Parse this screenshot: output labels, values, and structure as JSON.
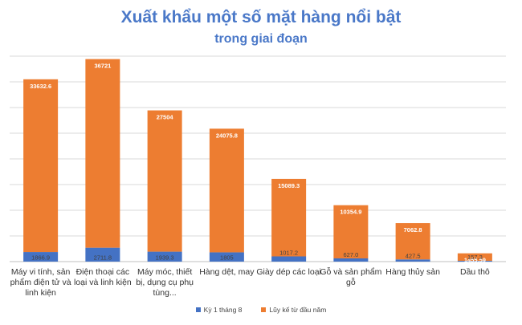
{
  "title": "Xuất khẩu một số mặt hàng nổi bật",
  "subtitle": "trong giai đoạn",
  "colors": {
    "series1": "#4472c4",
    "series2": "#ed7d31",
    "grid": "#d9d9d9"
  },
  "chart_data": {
    "type": "bar",
    "stacked": true,
    "title": "Xuất khẩu một số mặt hàng nổi bật trong giai đoạn",
    "categories": [
      [
        "Máy vi tính, sản",
        "phẩm điện tử và",
        "linh kiện"
      ],
      [
        "Điện thoại các",
        "loại và linh kiện"
      ],
      [
        "Máy móc, thiết",
        "bị, dụng cụ phụ",
        "tùng..."
      ],
      [
        "Hàng dệt, may"
      ],
      [
        "Giày dép các loại"
      ],
      [
        "Gỗ và sản phẩm",
        "gỗ"
      ],
      [
        "Hàng thủy sản"
      ],
      [
        "Dầu thô"
      ]
    ],
    "series": [
      {
        "name": "Kỳ 1 tháng 8",
        "values": [
          1866.9,
          2711.8,
          1939.3,
          1805,
          1017.2,
          627.0,
          427.5,
          157.3
        ],
        "labels": [
          "1866.9",
          "2711.8",
          "1939.3",
          "1805",
          "1017.2",
          "627.0",
          "427.5",
          "157.3"
        ]
      },
      {
        "name": "Lũy kế từ đầu năm",
        "values": [
          33632.6,
          36721,
          27504,
          24075.8,
          15089.3,
          10354.9,
          7062.8,
          1455.59
        ],
        "labels": [
          "33632.6",
          "36721",
          "27504",
          "24075.8",
          "15089.3",
          "10354.9",
          "7062.8",
          "1455.59"
        ]
      }
    ],
    "ylim": [
      0,
      40000
    ],
    "grid": true,
    "legend_position": "bottom"
  }
}
